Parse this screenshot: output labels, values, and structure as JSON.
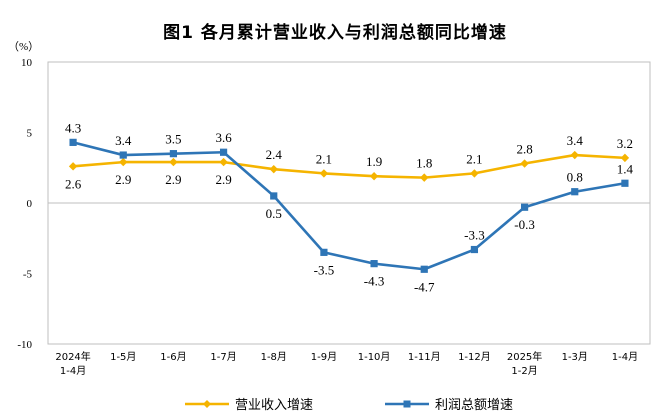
{
  "chart_data": {
    "type": "line",
    "title": "图1  各月累计营业收入与利润总额同比增速",
    "ylabel": "（%）",
    "ylim": [
      -10,
      10
    ],
    "yticks": [
      "10",
      "5",
      "0",
      "-5",
      "-10"
    ],
    "categories": [
      [
        "2024年",
        "1-4月"
      ],
      [
        "1-5月"
      ],
      [
        "1-6月"
      ],
      [
        "1-7月"
      ],
      [
        "1-8月"
      ],
      [
        "1-9月"
      ],
      [
        "1-10月"
      ],
      [
        "1-11月"
      ],
      [
        "1-12月"
      ],
      [
        "2025年",
        "1-2月"
      ],
      [
        "1-3月"
      ],
      [
        "1-4月"
      ]
    ],
    "legend_position": "bottom",
    "series": [
      {
        "name": "营业收入增速",
        "color": "#f5b400",
        "marker": "diamond",
        "values": [
          2.6,
          2.9,
          2.9,
          2.9,
          2.4,
          2.1,
          1.9,
          1.8,
          2.1,
          2.8,
          3.4,
          3.2
        ],
        "labels": [
          "2.6",
          "2.9",
          "2.9",
          "2.9",
          "2.4",
          "2.1",
          "1.9",
          "1.8",
          "2.1",
          "2.8",
          "3.4",
          "3.2"
        ]
      },
      {
        "name": "利润总额增速",
        "color": "#2e75b6",
        "marker": "square",
        "values": [
          4.3,
          3.4,
          3.5,
          3.6,
          0.5,
          -3.5,
          -4.3,
          -4.7,
          -3.3,
          -0.3,
          0.8,
          1.4
        ],
        "labels": [
          "4.3",
          "3.4",
          "3.5",
          "3.6",
          "0.5",
          "-3.5",
          "-4.3",
          "-4.7",
          "-3.3",
          "-0.3",
          "0.8",
          "1.4"
        ]
      }
    ]
  }
}
